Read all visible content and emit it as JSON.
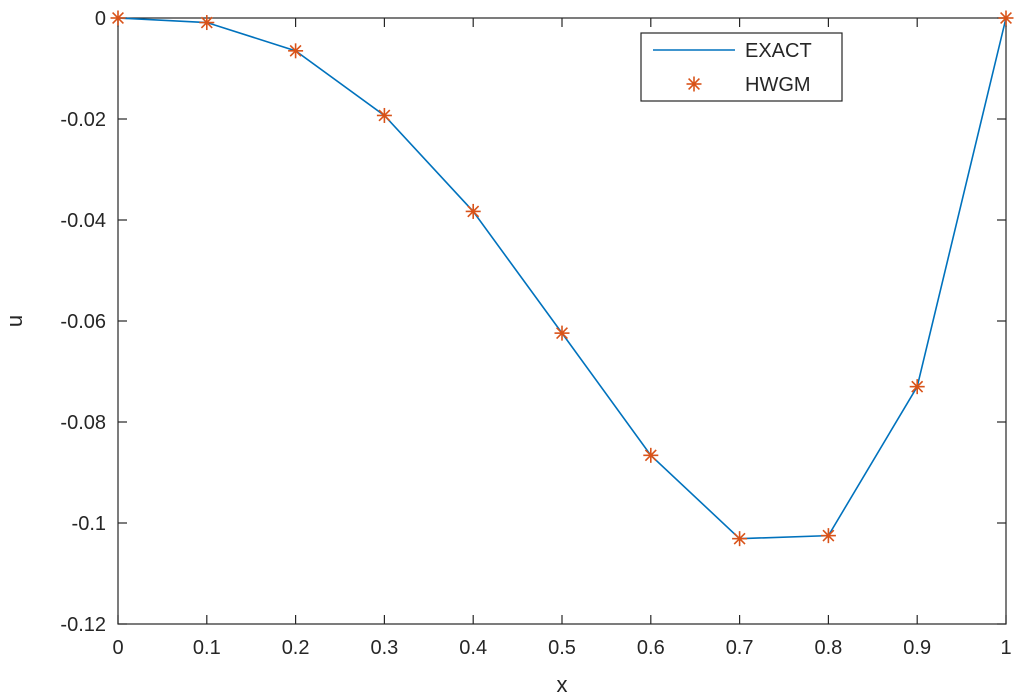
{
  "chart_data": {
    "type": "line",
    "xlabel": "x",
    "ylabel": "u",
    "xlim": [
      0,
      1
    ],
    "ylim": [
      -0.12,
      0
    ],
    "x_ticks": [
      {
        "value": 0,
        "label": "0"
      },
      {
        "value": 0.1,
        "label": "0.1"
      },
      {
        "value": 0.2,
        "label": "0.2"
      },
      {
        "value": 0.3,
        "label": "0.3"
      },
      {
        "value": 0.4,
        "label": "0.4"
      },
      {
        "value": 0.5,
        "label": "0.5"
      },
      {
        "value": 0.6,
        "label": "0.6"
      },
      {
        "value": 0.7,
        "label": "0.7"
      },
      {
        "value": 0.8,
        "label": "0.8"
      },
      {
        "value": 0.9,
        "label": "0.9"
      },
      {
        "value": 1,
        "label": "1"
      }
    ],
    "y_ticks": [
      {
        "value": 0,
        "label": "0"
      },
      {
        "value": -0.02,
        "label": "-0.02"
      },
      {
        "value": -0.04,
        "label": "-0.04"
      },
      {
        "value": -0.06,
        "label": "-0.06"
      },
      {
        "value": -0.08,
        "label": "-0.08"
      },
      {
        "value": -0.1,
        "label": "-0.1"
      },
      {
        "value": -0.12,
        "label": "-0.12"
      }
    ],
    "grid": false,
    "legend_position": "top-right",
    "x": [
      0,
      0.1,
      0.2,
      0.3,
      0.4,
      0.5,
      0.6,
      0.7,
      0.8,
      0.9,
      1.0
    ],
    "series": [
      {
        "name": "EXACT",
        "style": "line",
        "color": "#0072BD",
        "values": [
          0,
          -0.0009,
          -0.0065,
          -0.0193,
          -0.0383,
          -0.0624,
          -0.0866,
          -0.1031,
          -0.1025,
          -0.073,
          0
        ]
      },
      {
        "name": "HWGM",
        "style": "marker-asterisk",
        "color": "#D95319",
        "values": [
          0,
          -0.0009,
          -0.0065,
          -0.0193,
          -0.0383,
          -0.0624,
          -0.0866,
          -0.1031,
          -0.1025,
          -0.073,
          0
        ]
      }
    ]
  }
}
